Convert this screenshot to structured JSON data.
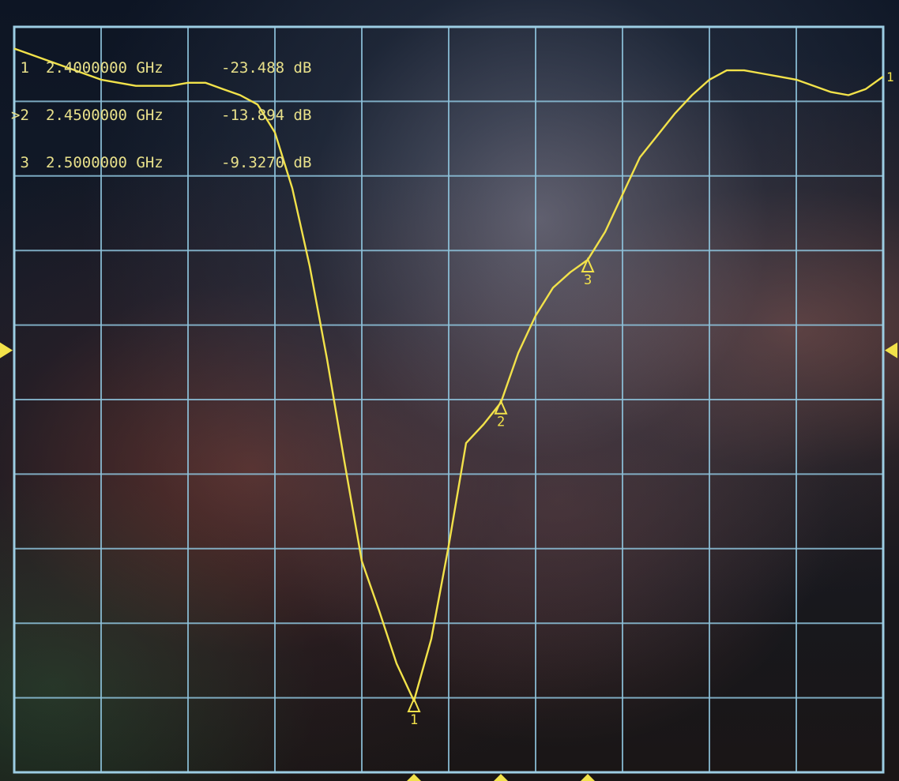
{
  "colors": {
    "trace": "#f2e24a",
    "grid": "#8ec3dc",
    "frame": "#9ccde3",
    "text": "#e8e08a"
  },
  "markers": [
    {
      "label": "1",
      "prefix": " ",
      "freq": "2.4000000 GHz",
      "value": "-23.488 dB"
    },
    {
      "label": "2",
      "prefix": ">",
      "freq": "2.4500000 GHz",
      "value": "-13.894 dB"
    },
    {
      "label": "3",
      "prefix": " ",
      "freq": "2.5000000 GHz",
      "value": "-9.3270 dB"
    }
  ],
  "trace_label": "1",
  "chart_data": {
    "type": "line",
    "x_unit": "GHz",
    "y_unit": "dB",
    "grid": true,
    "x_divisions": 10,
    "y_divisions": 10,
    "x_range": [
      2.17,
      2.67
    ],
    "y_range": [
      -25.8,
      -1.8
    ],
    "series": [
      {
        "x": [
          2.17,
          2.18,
          2.19,
          2.2,
          2.21,
          2.22,
          2.23,
          2.24,
          2.25,
          2.26,
          2.27,
          2.28,
          2.29,
          2.3,
          2.31,
          2.32,
          2.33,
          2.34,
          2.35,
          2.36,
          2.37,
          2.38,
          2.39,
          2.4,
          2.41,
          2.42,
          2.43,
          2.44,
          2.45,
          2.46,
          2.47,
          2.48,
          2.49,
          2.5,
          2.51,
          2.52,
          2.53,
          2.54,
          2.55,
          2.56,
          2.57,
          2.58,
          2.59,
          2.6,
          2.61,
          2.62,
          2.63,
          2.64,
          2.65,
          2.66,
          2.67
        ],
        "y": [
          -2.5,
          -2.7,
          -2.9,
          -3.1,
          -3.3,
          -3.5,
          -3.6,
          -3.7,
          -3.7,
          -3.7,
          -3.6,
          -3.6,
          -3.8,
          -4.0,
          -4.3,
          -5.2,
          -7.0,
          -9.5,
          -12.5,
          -15.8,
          -19.0,
          -20.6,
          -22.3,
          -23.5,
          -21.5,
          -18.5,
          -15.2,
          -14.6,
          -13.9,
          -12.3,
          -11.1,
          -10.2,
          -9.7,
          -9.3,
          -8.4,
          -7.2,
          -6.0,
          -5.3,
          -4.6,
          -4.0,
          -3.5,
          -3.2,
          -3.2,
          -3.3,
          -3.4,
          -3.5,
          -3.7,
          -3.9,
          -4.0,
          -3.8,
          -3.4
        ]
      }
    ],
    "marker_points": [
      {
        "label": "1",
        "x": 2.4,
        "y": -23.488
      },
      {
        "label": "2",
        "x": 2.45,
        "y": -13.894
      },
      {
        "label": "3",
        "x": 2.5,
        "y": -9.327
      }
    ]
  }
}
